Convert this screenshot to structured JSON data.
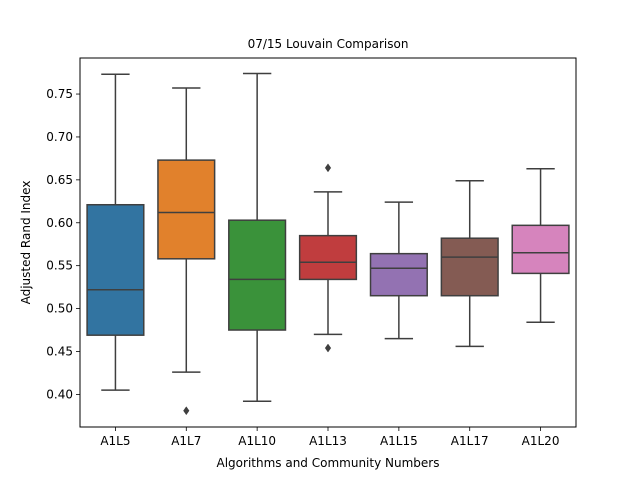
{
  "chart_data": {
    "type": "box",
    "title": "07/15 Louvain Comparison",
    "xlabel": "Algorithms and Community Numbers",
    "ylabel": "Adjusted Rand Index",
    "ylim": [
      0.362,
      0.792
    ],
    "yticks": [
      0.4,
      0.45,
      0.5,
      0.55,
      0.6,
      0.65,
      0.7,
      0.75
    ],
    "ytick_labels": [
      "0.40",
      "0.45",
      "0.50",
      "0.55",
      "0.60",
      "0.65",
      "0.70",
      "0.75"
    ],
    "grid": false,
    "categories": [
      "A1L5",
      "A1L7",
      "A1L10",
      "A1L13",
      "A1L15",
      "A1L17",
      "A1L20"
    ],
    "boxes": [
      {
        "name": "A1L5",
        "whisker_low": 0.405,
        "q1": 0.469,
        "median": 0.522,
        "q3": 0.621,
        "whisker_high": 0.773,
        "outliers": [],
        "color": "#3274a1"
      },
      {
        "name": "A1L7",
        "whisker_low": 0.426,
        "q1": 0.558,
        "median": 0.612,
        "q3": 0.673,
        "whisker_high": 0.757,
        "outliers": [
          0.381
        ],
        "color": "#e1812c"
      },
      {
        "name": "A1L10",
        "whisker_low": 0.392,
        "q1": 0.475,
        "median": 0.534,
        "q3": 0.603,
        "whisker_high": 0.774,
        "outliers": [],
        "color": "#3a923a"
      },
      {
        "name": "A1L13",
        "whisker_low": 0.47,
        "q1": 0.534,
        "median": 0.554,
        "q3": 0.585,
        "whisker_high": 0.636,
        "outliers": [
          0.664,
          0.454
        ],
        "color": "#c03d3e"
      },
      {
        "name": "A1L15",
        "whisker_low": 0.465,
        "q1": 0.515,
        "median": 0.547,
        "q3": 0.564,
        "whisker_high": 0.624,
        "outliers": [],
        "color": "#9372b2"
      },
      {
        "name": "A1L17",
        "whisker_low": 0.456,
        "q1": 0.515,
        "median": 0.56,
        "q3": 0.582,
        "whisker_high": 0.649,
        "outliers": [],
        "color": "#845b53"
      },
      {
        "name": "A1L20",
        "whisker_low": 0.484,
        "q1": 0.541,
        "median": 0.565,
        "q3": 0.597,
        "whisker_high": 0.663,
        "outliers": [],
        "color": "#d684bd"
      }
    ],
    "line_color": "#3f3f3f"
  }
}
